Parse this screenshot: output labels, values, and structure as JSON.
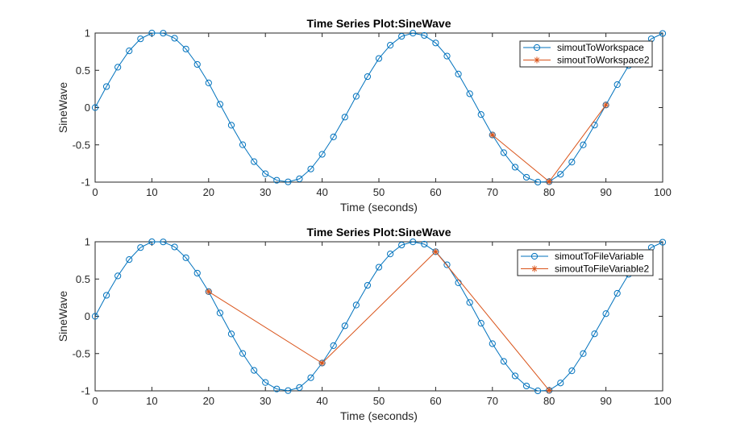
{
  "chart_data": [
    {
      "type": "line",
      "title": "Time Series Plot:SineWave",
      "xlabel": "Time (seconds)",
      "ylabel": "SineWave",
      "xlim": [
        0,
        100
      ],
      "ylim": [
        -1,
        1
      ],
      "xticks": [
        "0",
        "10",
        "20",
        "30",
        "40",
        "50",
        "60",
        "70",
        "80",
        "90",
        "100"
      ],
      "yticks": [
        "1",
        "0.5",
        "0",
        "-0.5",
        "-1"
      ],
      "legend_position": "top-right",
      "series": [
        {
          "name": "simoutToWorkspace",
          "color": "#0072BD",
          "marker": "circle",
          "x": [
            0,
            2,
            4,
            6,
            8,
            10,
            12,
            14,
            16,
            18,
            20,
            22,
            24,
            26,
            28,
            30,
            32,
            34,
            36,
            38,
            40,
            42,
            44,
            46,
            48,
            50,
            52,
            54,
            56,
            58,
            60,
            62,
            64,
            66,
            68,
            70,
            72,
            74,
            76,
            78,
            80,
            82,
            84,
            86,
            88,
            90,
            92,
            94,
            96,
            98,
            100
          ],
          "y": [
            0,
            0.2817,
            0.5418,
            0.7609,
            0.9224,
            0.9996,
            0.9979,
            0.9304,
            0.7857,
            0.5788,
            0.3308,
            0.0442,
            -0.2368,
            -0.4986,
            -0.7254,
            -0.8878,
            -0.9748,
            -0.9965,
            -0.9555,
            -0.8237,
            -0.6269,
            -0.3934,
            -0.1275,
            0.1511,
            0.4158,
            0.6589,
            0.8363,
            0.9561,
            0.9985,
            0.9681,
            0.8668,
            0.6911,
            0.45,
            0.1854,
            -0.0936,
            -0.3672,
            -0.6053,
            -0.7995,
            -0.9346,
            -0.9999,
            -0.9937,
            -0.8944,
            -0.7312,
            -0.5004,
            -0.2349,
            0.0352,
            0.308,
            0.5635,
            0.7739,
            0.9224,
            0.9941
          ]
        },
        {
          "name": "simoutToWorkspace2",
          "color": "#D95319",
          "marker": "asterisk",
          "x": [
            70,
            80,
            90
          ],
          "y": [
            -0.3672,
            -0.9937,
            0.0352
          ]
        }
      ]
    },
    {
      "type": "line",
      "title": "Time Series Plot:SineWave",
      "xlabel": "Time (seconds)",
      "ylabel": "SineWave",
      "xlim": [
        0,
        100
      ],
      "ylim": [
        -1,
        1
      ],
      "xticks": [
        "0",
        "10",
        "20",
        "30",
        "40",
        "50",
        "60",
        "70",
        "80",
        "90",
        "100"
      ],
      "yticks": [
        "1",
        "0.5",
        "0",
        "-0.5",
        "-1"
      ],
      "legend_position": "top-right",
      "series": [
        {
          "name": "simoutToFileVariable",
          "color": "#0072BD",
          "marker": "circle",
          "x": [
            0,
            2,
            4,
            6,
            8,
            10,
            12,
            14,
            16,
            18,
            20,
            22,
            24,
            26,
            28,
            30,
            32,
            34,
            36,
            38,
            40,
            42,
            44,
            46,
            48,
            50,
            52,
            54,
            56,
            58,
            60,
            62,
            64,
            66,
            68,
            70,
            72,
            74,
            76,
            78,
            80,
            82,
            84,
            86,
            88,
            90,
            92,
            94,
            96,
            98,
            100
          ],
          "y": [
            0,
            0.2817,
            0.5418,
            0.7609,
            0.9224,
            0.9996,
            0.9979,
            0.9304,
            0.7857,
            0.5788,
            0.3308,
            0.0442,
            -0.2368,
            -0.4986,
            -0.7254,
            -0.8878,
            -0.9748,
            -0.9965,
            -0.9555,
            -0.8237,
            -0.6269,
            -0.3934,
            -0.1275,
            0.1511,
            0.4158,
            0.6589,
            0.8363,
            0.9561,
            0.9985,
            0.9681,
            0.8668,
            0.6911,
            0.45,
            0.1854,
            -0.0936,
            -0.3672,
            -0.6053,
            -0.7995,
            -0.9346,
            -0.9999,
            -0.9937,
            -0.8944,
            -0.7312,
            -0.5004,
            -0.2349,
            0.0352,
            0.308,
            0.5635,
            0.7739,
            0.9224,
            0.9941
          ]
        },
        {
          "name": "simoutToFileVariable2",
          "color": "#D95319",
          "marker": "asterisk",
          "x": [
            20,
            40,
            60,
            80
          ],
          "y": [
            0.3308,
            -0.6269,
            0.8668,
            -0.9937
          ]
        }
      ]
    }
  ]
}
